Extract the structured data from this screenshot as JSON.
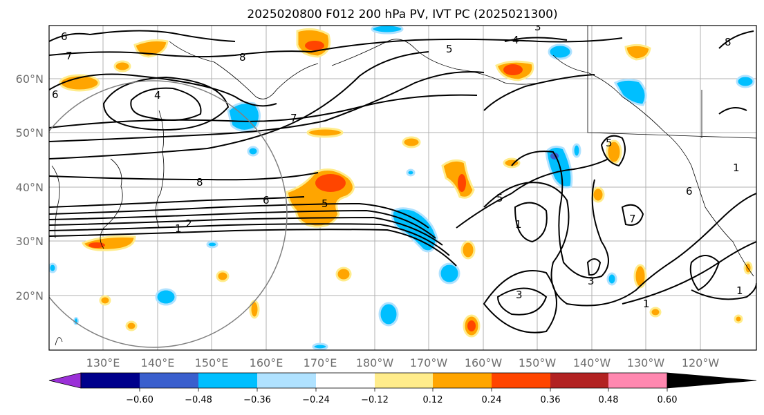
{
  "title": "2025020800 F012 200 hPa PV, IVT PC (2025021300)",
  "axes": {
    "lat_labels": [
      "60°N",
      "50°N",
      "40°N",
      "30°N",
      "20°N"
    ],
    "lon_labels": [
      "130°E",
      "140°E",
      "150°E",
      "160°E",
      "170°E",
      "180°W",
      "170°W",
      "160°W",
      "150°W",
      "140°W",
      "130°W",
      "120°W"
    ]
  },
  "colorbar": {
    "ticks": [
      "−0.60",
      "−0.48",
      "−0.36",
      "−0.24",
      "−0.12",
      "0.12",
      "0.24",
      "0.36",
      "0.48",
      "0.60"
    ],
    "colors": [
      "#9b30d8",
      "#00008b",
      "#3a5fcd",
      "#00bfff",
      "#b0e2ff",
      "#ffffff",
      "#ffec8b",
      "#ffa500",
      "#ff4500",
      "#b22222",
      "#ff88b0"
    ]
  },
  "contour_labels": [
    "6",
    "7",
    "8",
    "4",
    "5",
    "4",
    "3",
    "7",
    "8",
    "8",
    "6",
    "5",
    "1",
    "2",
    "1",
    "3",
    "3",
    "1",
    "5",
    "7",
    "6",
    "6",
    "1",
    "1",
    "5"
  ],
  "chart_data": {
    "type": "map",
    "field": "200 hPa PV contours with IVT PC shading",
    "lat_range": [
      10,
      70
    ],
    "lon_range_deg_east": [
      120,
      250
    ]
  }
}
